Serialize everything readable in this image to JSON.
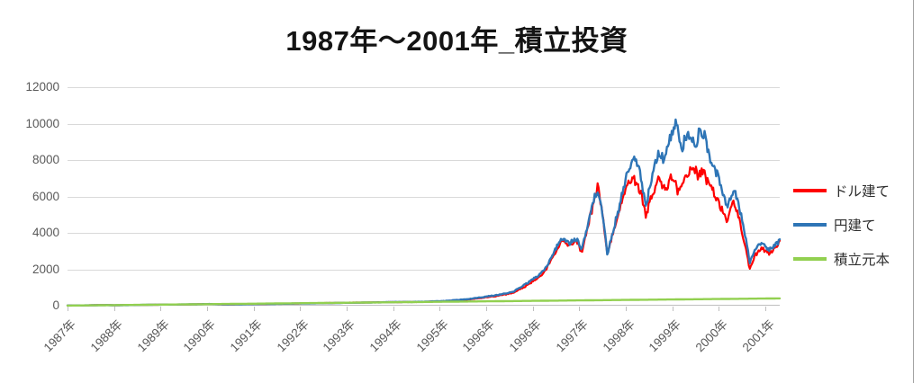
{
  "title": {
    "text": "1987年～2001年_積立投資"
  },
  "legend": {
    "items": [
      {
        "label": "ドル建て",
        "color": "#FF0000"
      },
      {
        "label": "円建て",
        "color": "#2E75B6"
      },
      {
        "label": "積立元本",
        "color": "#92D050"
      }
    ]
  },
  "colors": {
    "gridline": "#D9D9D9",
    "axis_line": "#BFBFBF",
    "tick_text": "#595959",
    "frame_edge": "#A3A3A3"
  },
  "chart_data": {
    "type": "line",
    "title": "1987年～2001年_積立投資",
    "xlabel": "",
    "ylabel": "",
    "ylim": [
      0,
      12000
    ],
    "y_ticks": [
      0,
      2000,
      4000,
      6000,
      8000,
      10000,
      12000
    ],
    "x_tick_labels": [
      "1987年",
      "1988年",
      "1989年",
      "1990年",
      "1991年",
      "1992年",
      "1993年",
      "1994年",
      "1995年",
      "1996年",
      "1996年",
      "1997年",
      "1998年",
      "1999年",
      "2000年",
      "2001年"
    ],
    "grid": "horizontal",
    "legend_position": "right",
    "series": [
      {
        "name": "ドル建て",
        "color": "#FF0000",
        "stroke_width": 2.2,
        "volatility": 0.09,
        "anchors": [
          [
            0,
            8
          ],
          [
            0.02,
            16
          ],
          [
            0.055,
            36
          ],
          [
            0.065,
            22
          ],
          [
            0.08,
            30
          ],
          [
            0.1,
            40
          ],
          [
            0.15,
            62
          ],
          [
            0.2,
            88
          ],
          [
            0.225,
            66
          ],
          [
            0.26,
            88
          ],
          [
            0.3,
            108
          ],
          [
            0.35,
            135
          ],
          [
            0.4,
            165
          ],
          [
            0.45,
            188
          ],
          [
            0.5,
            212
          ],
          [
            0.53,
            250
          ],
          [
            0.56,
            330
          ],
          [
            0.6,
            520
          ],
          [
            0.625,
            700
          ],
          [
            0.64,
            1000
          ],
          [
            0.66,
            1500
          ],
          [
            0.67,
            1900
          ],
          [
            0.685,
            2900
          ],
          [
            0.695,
            3500
          ],
          [
            0.705,
            3250
          ],
          [
            0.715,
            3550
          ],
          [
            0.722,
            2950
          ],
          [
            0.737,
            5400
          ],
          [
            0.745,
            6700
          ],
          [
            0.752,
            4700
          ],
          [
            0.758,
            2900
          ],
          [
            0.768,
            4300
          ],
          [
            0.775,
            5200
          ],
          [
            0.785,
            6500
          ],
          [
            0.795,
            7050
          ],
          [
            0.805,
            6300
          ],
          [
            0.812,
            5000
          ],
          [
            0.82,
            6200
          ],
          [
            0.83,
            6900
          ],
          [
            0.84,
            6400
          ],
          [
            0.85,
            7150
          ],
          [
            0.857,
            6300
          ],
          [
            0.865,
            6900
          ],
          [
            0.872,
            7400
          ],
          [
            0.878,
            7800
          ],
          [
            0.885,
            7100
          ],
          [
            0.893,
            7500
          ],
          [
            0.9,
            6800
          ],
          [
            0.91,
            6000
          ],
          [
            0.92,
            5200
          ],
          [
            0.927,
            4600
          ],
          [
            0.935,
            5600
          ],
          [
            0.942,
            4800
          ],
          [
            0.952,
            3200
          ],
          [
            0.958,
            1950
          ],
          [
            0.965,
            2700
          ],
          [
            0.975,
            3150
          ],
          [
            0.985,
            2800
          ],
          [
            1,
            3400
          ]
        ]
      },
      {
        "name": "円建て",
        "color": "#2E75B6",
        "stroke_width": 2.4,
        "volatility": 0.09,
        "anchors": [
          [
            0,
            8
          ],
          [
            0.02,
            15
          ],
          [
            0.055,
            33
          ],
          [
            0.065,
            21
          ],
          [
            0.08,
            29
          ],
          [
            0.1,
            42
          ],
          [
            0.15,
            64
          ],
          [
            0.2,
            90
          ],
          [
            0.225,
            64
          ],
          [
            0.26,
            86
          ],
          [
            0.3,
            104
          ],
          [
            0.35,
            130
          ],
          [
            0.4,
            160
          ],
          [
            0.45,
            192
          ],
          [
            0.5,
            222
          ],
          [
            0.53,
            262
          ],
          [
            0.56,
            350
          ],
          [
            0.6,
            560
          ],
          [
            0.625,
            750
          ],
          [
            0.64,
            1080
          ],
          [
            0.66,
            1600
          ],
          [
            0.67,
            2000
          ],
          [
            0.685,
            3050
          ],
          [
            0.695,
            3650
          ],
          [
            0.705,
            3400
          ],
          [
            0.715,
            3720
          ],
          [
            0.722,
            3060
          ],
          [
            0.737,
            5600
          ],
          [
            0.745,
            6350
          ],
          [
            0.752,
            4800
          ],
          [
            0.758,
            2800
          ],
          [
            0.768,
            4500
          ],
          [
            0.775,
            5500
          ],
          [
            0.785,
            7200
          ],
          [
            0.795,
            8300
          ],
          [
            0.805,
            7200
          ],
          [
            0.812,
            5450
          ],
          [
            0.82,
            7000
          ],
          [
            0.83,
            8300
          ],
          [
            0.838,
            7800
          ],
          [
            0.845,
            9000
          ],
          [
            0.852,
            9700
          ],
          [
            0.856,
            10400
          ],
          [
            0.862,
            8600
          ],
          [
            0.868,
            9300
          ],
          [
            0.875,
            9600
          ],
          [
            0.882,
            8800
          ],
          [
            0.888,
            9900
          ],
          [
            0.895,
            9400
          ],
          [
            0.9,
            8600
          ],
          [
            0.91,
            7500
          ],
          [
            0.92,
            6300
          ],
          [
            0.927,
            5400
          ],
          [
            0.935,
            6450
          ],
          [
            0.942,
            5650
          ],
          [
            0.952,
            3800
          ],
          [
            0.958,
            2350
          ],
          [
            0.965,
            3150
          ],
          [
            0.975,
            3550
          ],
          [
            0.985,
            3150
          ],
          [
            1,
            3500
          ]
        ]
      },
      {
        "name": "積立元本",
        "color": "#92D050",
        "stroke_width": 2.4,
        "volatility": 0,
        "anchors": [
          [
            0,
            5
          ],
          [
            0.25,
            105
          ],
          [
            0.5,
            205
          ],
          [
            0.75,
            303
          ],
          [
            1,
            400
          ]
        ]
      }
    ]
  }
}
